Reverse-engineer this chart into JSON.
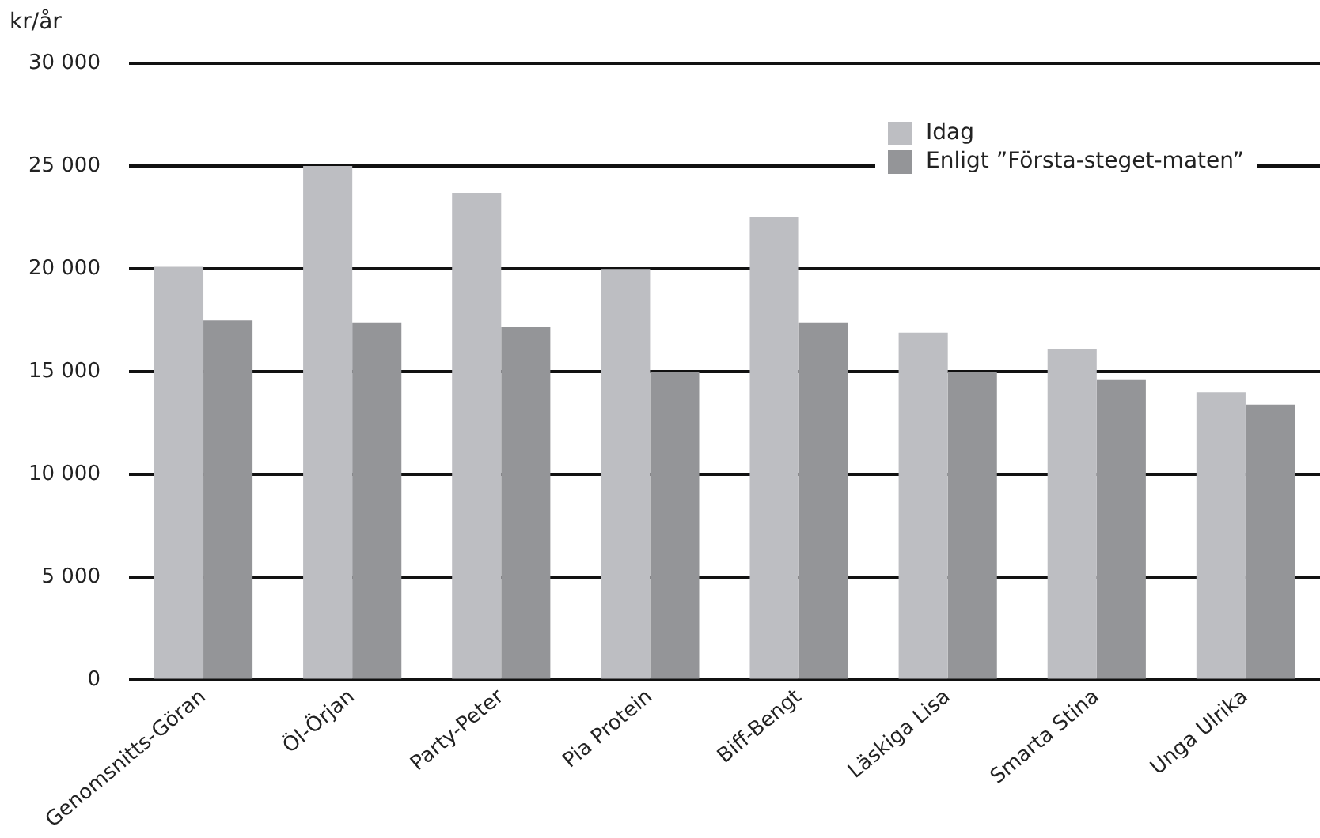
{
  "chart_data": {
    "type": "bar",
    "ylabel": "kr/år",
    "categories": [
      "Genomsnitts-Göran",
      "Öl-Örjan",
      "Party-Peter",
      "Pia Protein",
      "Biff-Bengt",
      "Läskiga Lisa",
      "Smarta Stina",
      "Unga Ulrika"
    ],
    "series": [
      {
        "name": "Idag",
        "color": "#bdbec2",
        "values": [
          20100,
          25000,
          23700,
          20000,
          22500,
          16900,
          16100,
          14000
        ]
      },
      {
        "name": "Enligt ”Första-steget-maten”",
        "color": "#949598",
        "values": [
          17500,
          17400,
          17200,
          15000,
          17400,
          15000,
          14600,
          13400
        ]
      }
    ],
    "ylim": [
      0,
      30000
    ],
    "yticks": [
      {
        "value": 0,
        "label": "0"
      },
      {
        "value": 5000,
        "label": "5 000"
      },
      {
        "value": 10000,
        "label": "10 000"
      },
      {
        "value": 15000,
        "label": "15 000"
      },
      {
        "value": 20000,
        "label": "20 000"
      },
      {
        "value": 25000,
        "label": "25 000"
      },
      {
        "value": 30000,
        "label": "30 000"
      }
    ],
    "grid": "y",
    "legend": "top right"
  }
}
